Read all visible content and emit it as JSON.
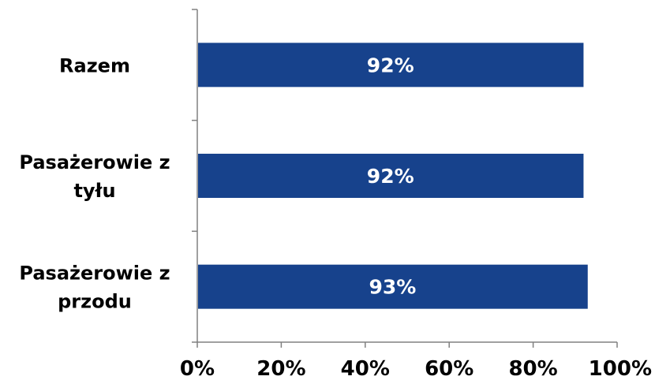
{
  "chart_data": {
    "type": "bar",
    "orientation": "horizontal",
    "categories": [
      "Razem",
      "Pasażerowie z tyłu",
      "Pasażerowie z przodu"
    ],
    "category_label_lines": [
      [
        "Razem"
      ],
      [
        "Pasażerowie z",
        "tyłu"
      ],
      [
        "Pasażerowie z",
        "przodu"
      ]
    ],
    "values": [
      0.92,
      0.92,
      0.93
    ],
    "data_labels": [
      "92%",
      "92%",
      "93%"
    ],
    "xlim": [
      0,
      1
    ],
    "x_ticks": [
      0,
      0.2,
      0.4,
      0.6,
      0.8,
      1.0
    ],
    "x_tick_labels": [
      "0%",
      "20%",
      "40%",
      "60%",
      "80%",
      "100%"
    ],
    "title": "",
    "xlabel": "",
    "ylabel": "",
    "grid": false,
    "legend": "none",
    "bar_color": "#17428C"
  }
}
